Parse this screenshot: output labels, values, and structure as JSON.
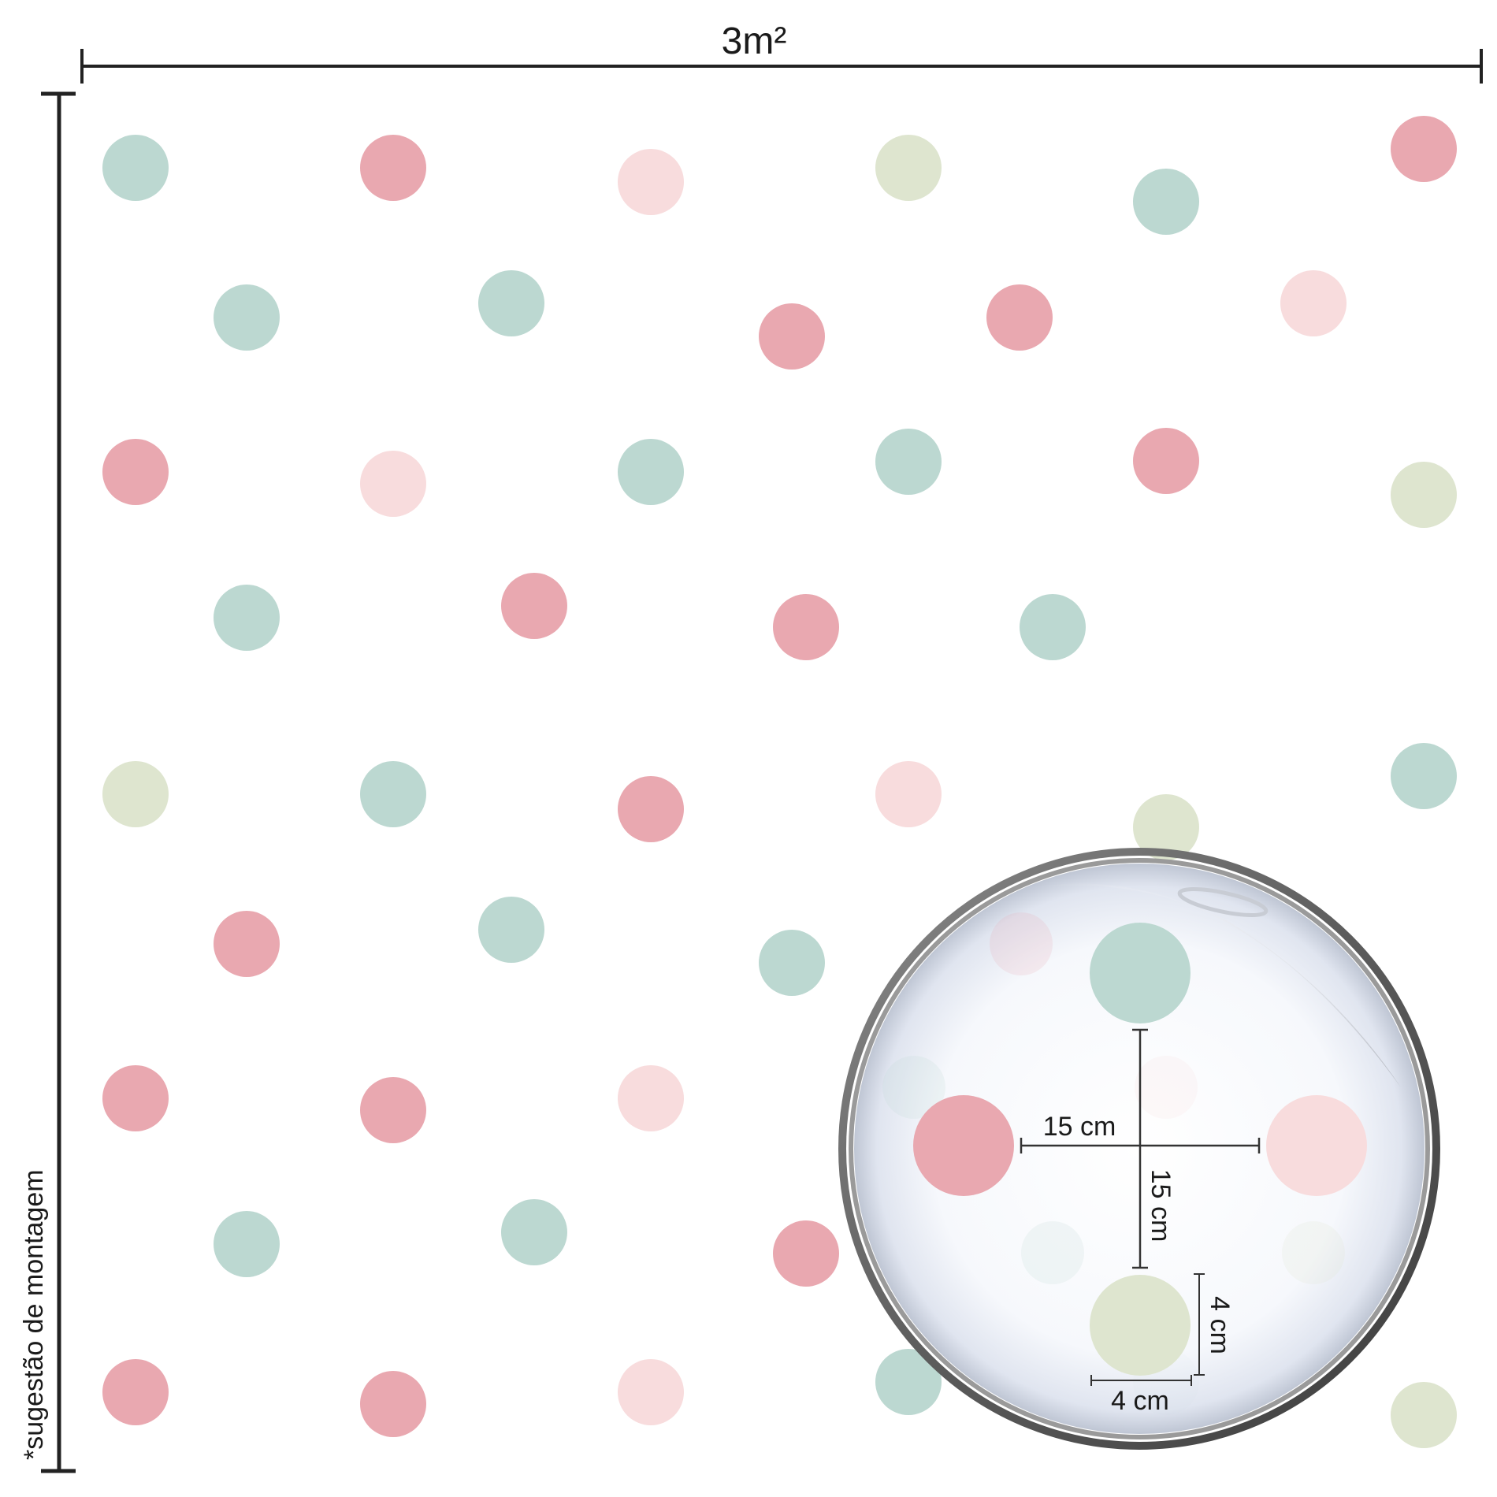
{
  "width_label": "3m²",
  "side_note": "*sugestão de montagem",
  "colors": {
    "mint": "#bcd8d1",
    "rose": "#e9a8b0",
    "blush": "#f8dcdd",
    "sage": "#dee5cf",
    "line": "#222222"
  },
  "dots": [
    "mint",
    "rose",
    "blush",
    "sage",
    "mint",
    "rose",
    "mint",
    "mint",
    "rose",
    "rose",
    "blush",
    "rose",
    "blush",
    "mint",
    "mint",
    "rose",
    "sage",
    "mint",
    "rose",
    "rose",
    "mint",
    "sage",
    "mint",
    "rose",
    "blush",
    "sage",
    "mint",
    "rose",
    "mint",
    "mint",
    "rose",
    "rose",
    "blush",
    "mint",
    "mint",
    "rose",
    "rose",
    "rose",
    "blush",
    "mint",
    "mint",
    "sage"
  ],
  "zoom": {
    "dots": [
      "mint",
      "rose",
      "blush",
      "sage"
    ],
    "spacing_horizontal": "15 cm",
    "spacing_vertical": "15 cm",
    "diameter_horizontal": "4 cm",
    "diameter_vertical": "4 cm"
  }
}
